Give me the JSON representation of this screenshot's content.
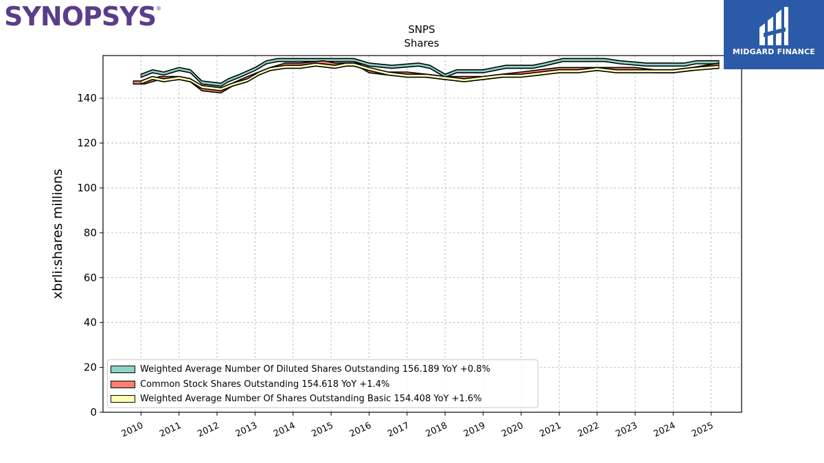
{
  "branding": {
    "company_logo_text": "SYNOPSYS",
    "company_logo_mark": "®",
    "company_logo_color": "#5a3d8a",
    "publisher_logo_text": "MIDGARD FINANCE",
    "publisher_bg_color": "#2b5aa8"
  },
  "chart_data": {
    "type": "area",
    "title": "SNPS",
    "subtitle": "Shares",
    "xlabel": "",
    "ylabel": "xbrli:shares millions",
    "ylim": [
      0,
      159
    ],
    "xlim": [
      2009.0,
      2025.8
    ],
    "y_ticks": [
      0,
      20,
      40,
      60,
      80,
      100,
      120,
      140
    ],
    "x_ticks": [
      "2010",
      "2011",
      "2012",
      "2013",
      "2014",
      "2015",
      "2016",
      "2017",
      "2018",
      "2019",
      "2020",
      "2021",
      "2022",
      "2023",
      "2024",
      "2025"
    ],
    "grid": true,
    "legend_position": "lower-left",
    "series": [
      {
        "name": "Weighted Average Number Of Diluted Shares Outstanding",
        "legend_label": "Weighted Average Number Of Diluted Shares Outstanding  156.189 YoY +0.8%",
        "color": "#8dd3c7",
        "x": [
          2010.0,
          2010.3,
          2010.6,
          2011.0,
          2011.3,
          2011.6,
          2012.1,
          2012.3,
          2012.6,
          2013.0,
          2013.3,
          2013.6,
          2014.1,
          2014.6,
          2015.1,
          2015.3,
          2015.6,
          2016.0,
          2016.6,
          2017.3,
          2017.6,
          2018.0,
          2018.3,
          2018.6,
          2019.0,
          2019.3,
          2019.6,
          2020.3,
          2020.6,
          2021.1,
          2021.6,
          2022.2,
          2022.6,
          2023.3,
          2023.6,
          2024.3,
          2024.6,
          2025.2
        ],
        "values": [
          150,
          152,
          151,
          153,
          152,
          147,
          146,
          148,
          150,
          153,
          156,
          157,
          157,
          157,
          157,
          157,
          157,
          155,
          154,
          155,
          154,
          150,
          152,
          152,
          152,
          153,
          154,
          154,
          155,
          157,
          157,
          157,
          156,
          155,
          155,
          155,
          156,
          156
        ]
      },
      {
        "name": "Common Stock Shares Outstanding",
        "legend_label": "Common Stock Shares Outstanding  154.618 YoY +1.4%",
        "color": "#fb8072",
        "x": [
          2009.8,
          2010.1,
          2010.5,
          2011.0,
          2011.3,
          2011.6,
          2012.1,
          2012.4,
          2012.8,
          2013.1,
          2013.4,
          2013.8,
          2014.2,
          2014.8,
          2015.1,
          2015.4,
          2015.7,
          2016.0,
          2016.5,
          2017.0,
          2017.5,
          2018.0,
          2018.5,
          2019.0,
          2019.5,
          2020.0,
          2020.5,
          2021.0,
          2021.5,
          2022.0,
          2022.5,
          2023.0,
          2023.5,
          2024.0,
          2024.5,
          2025.2
        ],
        "values": [
          147,
          147,
          149,
          149,
          148,
          144,
          143,
          146,
          149,
          151,
          153,
          155,
          155,
          156,
          155,
          155,
          155,
          152,
          151,
          151,
          150,
          149,
          149,
          149,
          150,
          151,
          152,
          153,
          153,
          153,
          153,
          153,
          152,
          152,
          153,
          155
        ]
      },
      {
        "name": "Weighted Average Number Of Shares Outstanding Basic",
        "legend_label": "Weighted Average Number Of Shares Outstanding Basic  154.408 YoY +1.6%",
        "color": "#ffffb3",
        "x": [
          2010.0,
          2010.3,
          2010.6,
          2011.0,
          2011.3,
          2011.6,
          2012.1,
          2012.4,
          2012.8,
          2013.1,
          2013.4,
          2013.8,
          2014.2,
          2014.6,
          2015.1,
          2015.4,
          2015.6,
          2016.0,
          2016.5,
          2017.0,
          2017.5,
          2018.0,
          2018.5,
          2019.0,
          2019.5,
          2020.0,
          2020.5,
          2021.0,
          2021.5,
          2022.0,
          2022.5,
          2023.0,
          2023.5,
          2024.0,
          2024.5,
          2025.2
        ],
        "values": [
          147,
          149,
          148,
          149,
          148,
          145,
          144,
          146,
          148,
          151,
          153,
          154,
          154,
          155,
          154,
          155,
          155,
          153,
          151,
          150,
          150,
          149,
          148,
          149,
          150,
          150,
          151,
          152,
          152,
          153,
          152,
          152,
          152,
          152,
          153,
          154
        ]
      }
    ]
  }
}
